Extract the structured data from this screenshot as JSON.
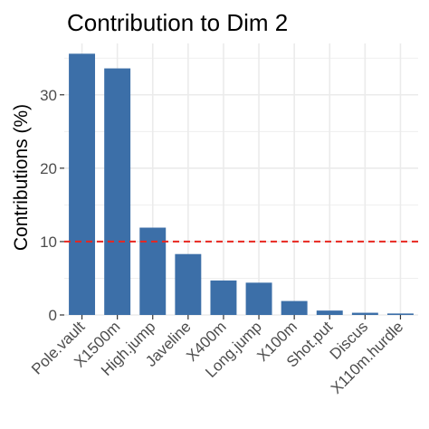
{
  "chart_data": {
    "type": "bar",
    "title": "Contribution to Dim 2",
    "xlabel": "",
    "ylabel": "Contributions (%)",
    "categories": [
      "Pole.vault",
      "X1500m",
      "High.jump",
      "Javeline",
      "X400m",
      "Long.jump",
      "X100m",
      "Shot.put",
      "Discus",
      "X110m.hurdle"
    ],
    "values": [
      35.6,
      33.6,
      11.9,
      8.3,
      4.7,
      4.4,
      1.9,
      0.6,
      0.3,
      0.2
    ],
    "ylim": [
      0,
      37
    ],
    "yticks": [
      0,
      10,
      20,
      30
    ],
    "reference_line": 10,
    "grid": true,
    "colors": {
      "bar": "#3c6fa8",
      "reference": "#e8261f",
      "grid": "#ebebeb"
    }
  }
}
